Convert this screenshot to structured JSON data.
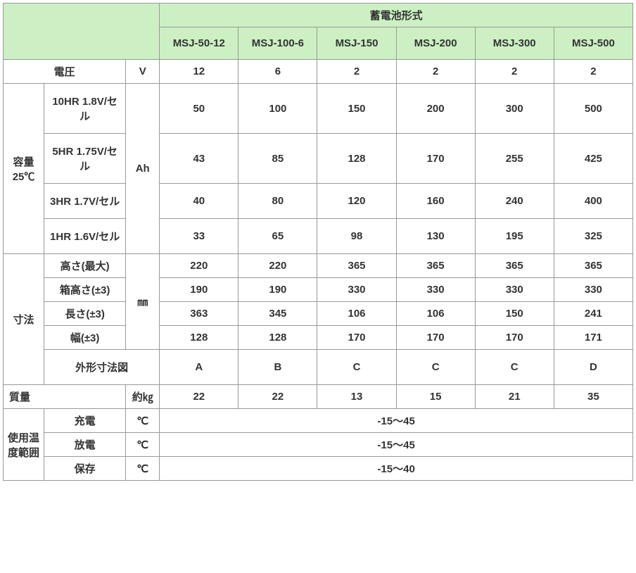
{
  "header": {
    "title": "蓄電池形式",
    "models": [
      "MSJ-50-12",
      "MSJ-100-6",
      "MSJ-150",
      "MSJ-200",
      "MSJ-300",
      "MSJ-500"
    ]
  },
  "voltage": {
    "label": "電圧",
    "unit": "V",
    "values": [
      "12",
      "6",
      "2",
      "2",
      "2",
      "2"
    ]
  },
  "capacity": {
    "label": "容量25℃",
    "unit": "Ah",
    "rows": [
      {
        "label": "10HR 1.8V/セル",
        "values": [
          "50",
          "100",
          "150",
          "200",
          "300",
          "500"
        ]
      },
      {
        "label": "5HR 1.75V/セル",
        "values": [
          "43",
          "85",
          "128",
          "170",
          "255",
          "425"
        ]
      },
      {
        "label": "3HR 1.7V/セル",
        "values": [
          "40",
          "80",
          "120",
          "160",
          "240",
          "400"
        ]
      },
      {
        "label": "1HR 1.6V/セル",
        "values": [
          "33",
          "65",
          "98",
          "130",
          "195",
          "325"
        ]
      }
    ]
  },
  "dimensions": {
    "label": "寸法",
    "unit": "㎜",
    "rows": [
      {
        "label": "高さ(最大)",
        "values": [
          "220",
          "220",
          "365",
          "365",
          "365",
          "365"
        ]
      },
      {
        "label": "箱高さ(±3)",
        "values": [
          "190",
          "190",
          "330",
          "330",
          "330",
          "330"
        ]
      },
      {
        "label": "長さ(±3)",
        "values": [
          "363",
          "345",
          "106",
          "106",
          "150",
          "241"
        ]
      },
      {
        "label": "幅(±3)",
        "values": [
          "128",
          "128",
          "170",
          "170",
          "170",
          "171"
        ]
      }
    ],
    "shape": {
      "label": "外形寸法図",
      "values": [
        "A",
        "B",
        "C",
        "C",
        "C",
        "D"
      ]
    }
  },
  "mass": {
    "label": "質量",
    "unit": "約㎏",
    "values": [
      "22",
      "22",
      "13",
      "15",
      "21",
      "35"
    ]
  },
  "temperature": {
    "label": "使用温度範囲",
    "unit": "℃",
    "rows": [
      {
        "label": "充電",
        "value": "-15～45"
      },
      {
        "label": "放電",
        "value": "-15～45"
      },
      {
        "label": "保存",
        "value": "-15～40"
      }
    ]
  }
}
